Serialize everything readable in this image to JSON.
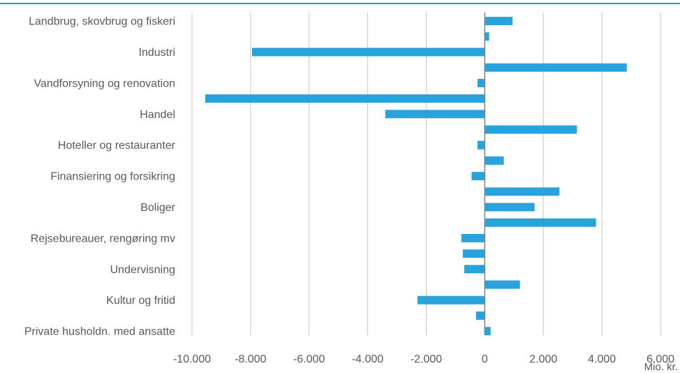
{
  "colors": {
    "bar": "#29a3dc",
    "grid": "#c6c6c6",
    "zero_axis": "#7f7f7f",
    "top_rule": "#1f9ad6",
    "text": "#595959"
  },
  "chart_data": {
    "type": "bar",
    "orientation": "horizontal",
    "title": "",
    "xlabel": "",
    "ylabel": "",
    "unit_label": "Mio. kr.",
    "xlim": [
      -10000,
      6000
    ],
    "x_ticks": [
      -10000,
      -8000,
      -6000,
      -4000,
      -2000,
      0,
      2000,
      4000,
      6000
    ],
    "x_tick_labels": [
      "-10.000",
      "-8.000",
      "-6.000",
      "-4.000",
      "-2.000",
      "0",
      "2.000",
      "4.000",
      "6.000"
    ],
    "grid": "vertical",
    "legend": "none",
    "category_labels": [
      "Landbrug, skovbrug og fiskeri",
      "Industri",
      "Vandforsyning og renovation",
      "Handel",
      "Hoteller og restauranter",
      "Finansiering og forsikring",
      "Boliger",
      "Rejsebureauer, rengøring mv",
      "Undervisning",
      "Kultur og fritid",
      "Private husholdn. med ansatte"
    ],
    "values": [
      950,
      150,
      -7950,
      4850,
      -250,
      -9550,
      -3400,
      3150,
      -250,
      650,
      -450,
      2550,
      1700,
      3800,
      -800,
      -750,
      -700,
      1200,
      -2300,
      -300,
      200
    ]
  }
}
